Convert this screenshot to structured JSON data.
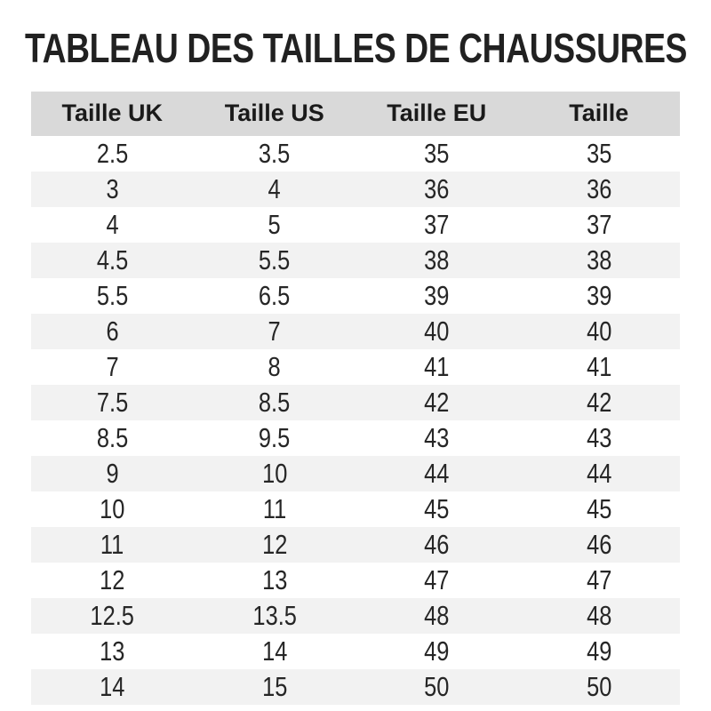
{
  "page": {
    "title": "TABLEAU DES TAILLES DE CHAUSSURES"
  },
  "table": {
    "headers": [
      "Taille UK",
      "Taille US",
      "Taille EU",
      "Taille"
    ],
    "rows": [
      [
        "2.5",
        "3.5",
        "35",
        "35"
      ],
      [
        "3",
        "4",
        "36",
        "36"
      ],
      [
        "4",
        "5",
        "37",
        "37"
      ],
      [
        "4.5",
        "5.5",
        "38",
        "38"
      ],
      [
        "5.5",
        "6.5",
        "39",
        "39"
      ],
      [
        "6",
        "7",
        "40",
        "40"
      ],
      [
        "7",
        "8",
        "41",
        "41"
      ],
      [
        "7.5",
        "8.5",
        "42",
        "42"
      ],
      [
        "8.5",
        "9.5",
        "43",
        "43"
      ],
      [
        "9",
        "10",
        "44",
        "44"
      ],
      [
        "10",
        "11",
        "45",
        "45"
      ],
      [
        "11",
        "12",
        "46",
        "46"
      ],
      [
        "12",
        "13",
        "47",
        "47"
      ],
      [
        "12.5",
        "13.5",
        "48",
        "48"
      ],
      [
        "13",
        "14",
        "49",
        "49"
      ],
      [
        "14",
        "15",
        "50",
        "50"
      ]
    ]
  },
  "colors": {
    "header_bg": "#d9d9d9",
    "row_alt_bg": "#f2f2f2",
    "title_color": "#212121",
    "text_color": "#262626"
  }
}
